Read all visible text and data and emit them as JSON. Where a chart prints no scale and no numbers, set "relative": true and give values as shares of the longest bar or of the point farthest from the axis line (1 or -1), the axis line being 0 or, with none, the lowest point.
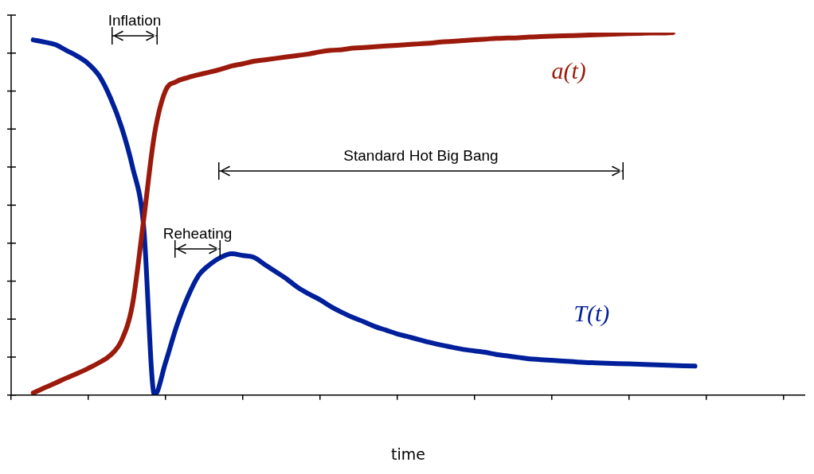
{
  "chart_data": {
    "type": "line",
    "relative": true,
    "xlabel": "time",
    "grid": false,
    "legend": false,
    "marker": "none",
    "line_style": "solid",
    "categories": [
      null,
      null,
      null,
      null,
      null,
      null,
      null,
      null,
      null,
      null,
      null,
      null,
      null,
      null,
      null,
      null,
      null,
      null,
      null,
      null,
      null,
      null,
      null,
      null,
      null,
      null,
      null,
      null,
      null,
      null,
      null,
      null,
      null,
      null,
      null,
      null,
      null,
      null,
      null,
      null,
      null,
      null,
      null,
      null,
      null,
      null,
      null,
      null,
      null,
      null,
      null,
      null,
      null,
      null,
      null,
      null,
      null,
      null,
      null,
      null,
      null,
      null,
      null,
      null,
      null,
      null,
      null,
      null,
      null,
      null,
      null,
      null,
      null
    ],
    "annotations": [
      "Inflation",
      "Reheating",
      "Standard Hot Big Bang"
    ],
    "series": [
      {
        "name": "a(t)",
        "color": "#9b1a0c",
        "values": [
          null,
          null,
          0.006,
          0.02,
          0.033,
          0.047,
          0.06,
          0.074,
          0.09,
          0.11,
          0.15,
          0.25,
          0.48,
          0.72,
          0.84,
          0.865,
          0.876,
          0.884,
          0.891,
          0.899,
          0.908,
          0.914,
          0.921,
          0.925,
          0.929,
          0.933,
          0.937,
          0.941,
          0.947,
          0.951,
          0.953,
          0.957,
          0.959,
          0.961,
          0.963,
          0.965,
          0.967,
          0.969,
          0.971,
          0.974,
          0.976,
          0.978,
          0.98,
          0.982,
          0.984,
          0.985,
          0.986,
          0.988,
          0.989,
          0.99,
          0.991,
          0.992,
          0.993,
          0.994,
          0.995,
          0.996,
          0.997,
          0.998,
          0.999,
          0.999,
          1,
          null,
          null,
          null,
          null,
          null,
          null,
          null,
          null,
          null,
          null,
          null,
          null
        ]
      },
      {
        "name": "T(t)",
        "color": "#001f9b",
        "values": [
          null,
          null,
          0.98,
          0.974,
          0.967,
          0.951,
          0.935,
          0.914,
          0.88,
          0.82,
          0.74,
          0.63,
          0.47,
          0,
          0.09,
          0.19,
          0.27,
          0.33,
          0.36,
          0.38,
          0.39,
          0.385,
          0.38,
          0.36,
          0.34,
          0.32,
          0.297,
          0.279,
          0.263,
          0.244,
          0.228,
          0.214,
          0.202,
          0.189,
          0.179,
          0.169,
          0.161,
          0.153,
          0.145,
          0.138,
          0.132,
          0.126,
          0.122,
          0.118,
          0.112,
          0.108,
          0.104,
          0.1,
          0.098,
          0.096,
          0.094,
          0.092,
          0.09,
          0.089,
          0.088,
          0.087,
          0.086,
          0.085,
          0.084,
          0.083,
          0.082,
          0.081,
          0.08,
          null,
          null,
          null,
          null,
          null,
          null,
          null,
          null,
          null,
          null
        ]
      }
    ]
  }
}
